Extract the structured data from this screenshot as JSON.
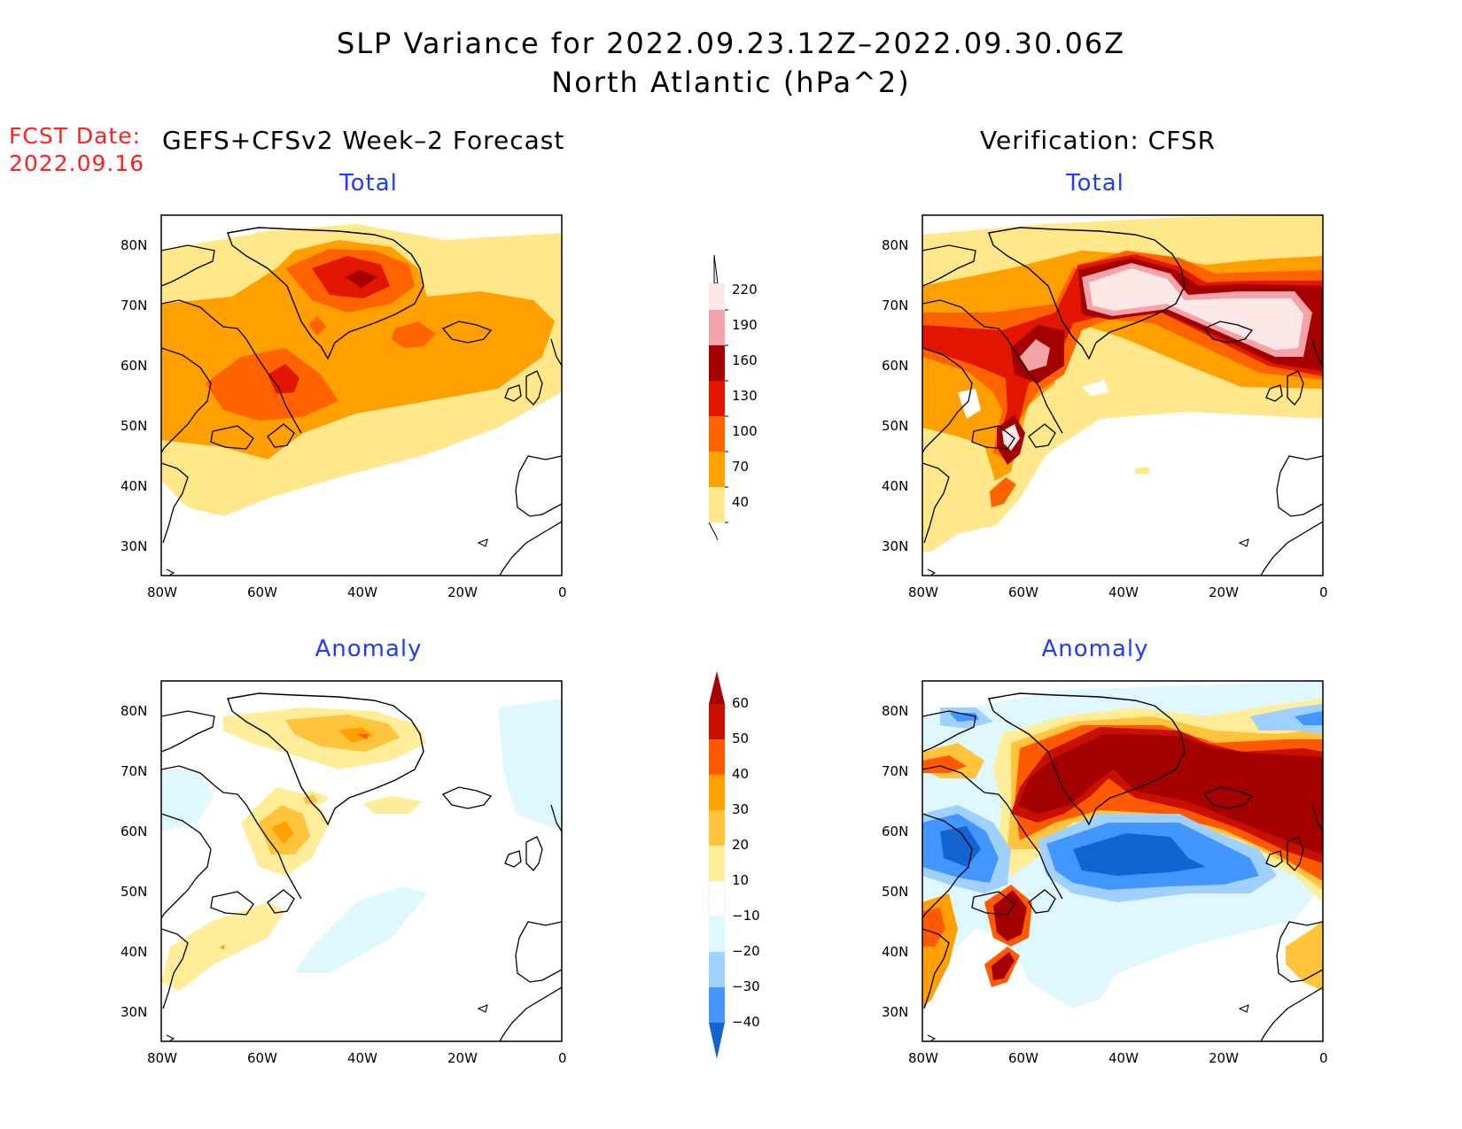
{
  "title": {
    "line1": "SLP Variance for 2022.09.23.12Z–2022.09.30.06Z",
    "line2": "North Atlantic (hPa^2)"
  },
  "fcst_date": {
    "label": "FCST Date:",
    "value": "2022.09.16"
  },
  "columns": {
    "forecast": "GEFS+CFSv2 Week–2 Forecast",
    "verification": "Verification: CFSR"
  },
  "panels": {
    "fc_total": "Total",
    "vf_total": "Total",
    "fc_anom": "Anomaly",
    "vf_anom": "Anomaly"
  },
  "axes": {
    "lon_labels": [
      "80W",
      "60W",
      "40W",
      "20W",
      "0"
    ],
    "lat_labels": [
      "80N",
      "70N",
      "60N",
      "50N",
      "40N",
      "30N"
    ]
  },
  "total_colorbar": {
    "levels": [
      "40",
      "70",
      "100",
      "130",
      "160",
      "190",
      "220"
    ],
    "colors": [
      "#ffe78a",
      "#ffa000",
      "#ff6300",
      "#e11500",
      "#a50000",
      "#f4a3a8",
      "#fde8e8"
    ]
  },
  "anomaly_colorbar": {
    "levels": [
      "60",
      "50",
      "40",
      "30",
      "20",
      "10",
      "−10",
      "−20",
      "−30",
      "−40"
    ],
    "colors_top_down": [
      "#a50000",
      "#c80f00",
      "#ff5a00",
      "#ffa000",
      "#ffc43c",
      "#ffed99",
      "#ffffff",
      "#dff7ff",
      "#9fd0ff",
      "#4196ff",
      "#1463d2"
    ]
  }
}
